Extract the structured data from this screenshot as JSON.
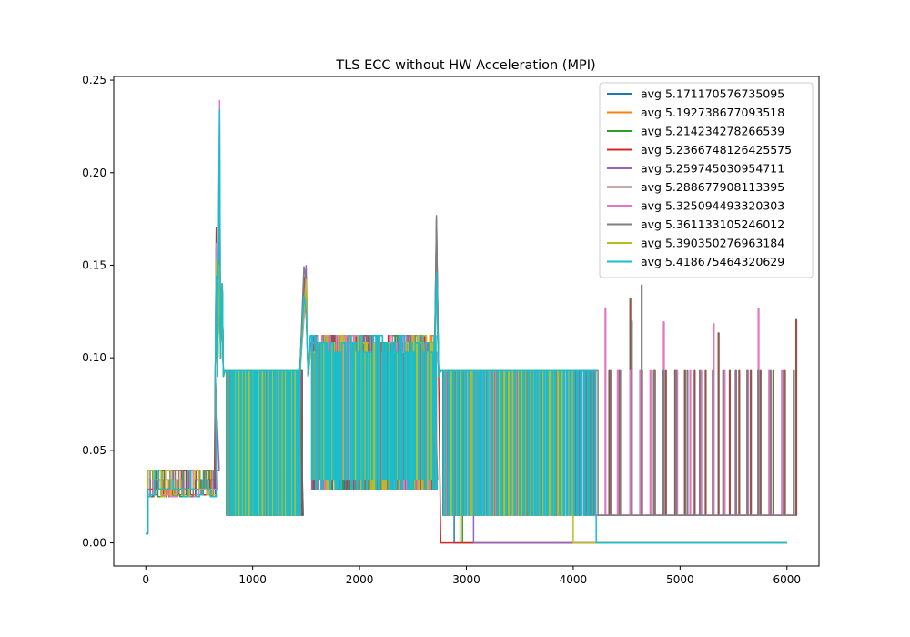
{
  "chart_data": {
    "type": "line",
    "title": "TLS ECC without HW Acceleration (MPI)",
    "xlabel": "",
    "ylabel": "",
    "xlim": [
      -300,
      6300
    ],
    "ylim": [
      -0.0125,
      0.252
    ],
    "xticks": [
      0,
      1000,
      2000,
      3000,
      4000,
      5000,
      6000
    ],
    "xtick_labels": [
      "0",
      "1000",
      "2000",
      "3000",
      "4000",
      "5000",
      "6000"
    ],
    "yticks": [
      0.0,
      0.05,
      0.1,
      0.15,
      0.2,
      0.25
    ],
    "ytick_labels": [
      "0.00",
      "0.05",
      "0.10",
      "0.15",
      "0.20",
      "0.25"
    ],
    "grid": false,
    "legend_position": "upper right",
    "series": [
      {
        "name": "avg 5.171170576735095",
        "color": "#1f77b4",
        "end_x": 2870,
        "peak": 0.147,
        "tail": "zero",
        "seed": 11
      },
      {
        "name": "avg 5.192738677093518",
        "color": "#ff7f0e",
        "end_x": 2940,
        "peak": 0.152,
        "tail": "zero",
        "seed": 23
      },
      {
        "name": "avg 5.214234278266539",
        "color": "#2ca02c",
        "end_x": 2960,
        "peak": 0.15,
        "tail": "zero",
        "seed": 37
      },
      {
        "name": "avg 5.2366748126425575",
        "color": "#d62728",
        "end_x": 2750,
        "peak": 0.186,
        "tail": "zero",
        "seed": 41
      },
      {
        "name": "avg 5.259745030954711",
        "color": "#9467bd",
        "end_x": 3040,
        "peak": 0.18,
        "tail": "zero",
        "seed": 53
      },
      {
        "name": "avg 5.288677908113395",
        "color": "#8c564b",
        "end_x": 6000,
        "peak": 0.181,
        "tail": "periodic",
        "seed": 67
      },
      {
        "name": "avg 5.325094493320303",
        "color": "#e377c2",
        "end_x": 6000,
        "peak": 0.239,
        "tail": "periodic",
        "seed": 79
      },
      {
        "name": "avg 5.361133105246012",
        "color": "#7f7f7f",
        "end_x": 6000,
        "peak": 0.171,
        "tail": "periodic",
        "seed": 83
      },
      {
        "name": "avg 5.390350276963184",
        "color": "#bcbd22",
        "end_x": 3970,
        "peak": 0.15,
        "tail": "zero",
        "seed": 97
      },
      {
        "name": "avg 5.418675464320629",
        "color": "#17becf",
        "end_x": 4210,
        "peak": 0.234,
        "tail": "zero",
        "seed": 101
      }
    ],
    "notes": {
      "x_range_data": [
        0,
        6000
      ],
      "baseline_levels": [
        0.0,
        0.015,
        0.029,
        0.034,
        0.088,
        0.093,
        0.103,
        0.108
      ]
    }
  }
}
